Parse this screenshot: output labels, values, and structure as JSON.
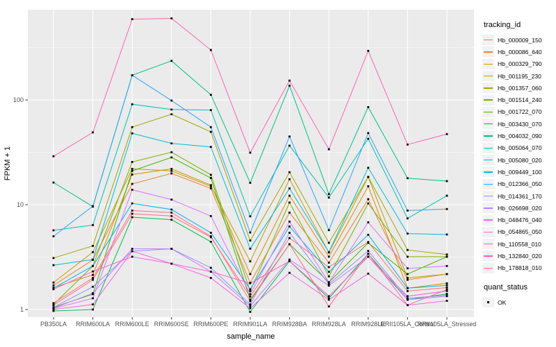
{
  "figure": {
    "background": "#ffffff",
    "panel_background": "#ebebeb",
    "gridline_color": "#ffffff",
    "axis_text_color": "#4d4d4d",
    "tick_color": "#333333"
  },
  "chart_data": {
    "type": "line",
    "title": "",
    "xlabel": "sample_name",
    "ylabel": "FPKM + 1",
    "y_scale": "log10",
    "y_ticks": [
      1,
      10,
      100
    ],
    "y_tick_labels": [
      "1",
      "10",
      "100"
    ],
    "y_minor_ticks": [
      3.1623,
      31.623,
      316.23
    ],
    "ylim": [
      0.85,
      730
    ],
    "grid": "on",
    "legend_position": "right",
    "legend_title": "tracking_id",
    "point_legend": {
      "title": "quant_status",
      "label": "OK",
      "marker": "black-square"
    },
    "categories": [
      "PB350LA",
      "RRIM600LA",
      "RRIM600LE",
      "RRIM600SE",
      "RRIM600PE",
      "RRIM901LA",
      "RRIM928BA",
      "RRIM928LA",
      "RRIM928LE",
      "RRII105LA_Control",
      "RRII105LA_Stressed"
    ],
    "series": [
      {
        "name": "Hb_000009_150",
        "color": "#F8766D",
        "values": [
          1.1,
          1.92,
          8.2,
          7.8,
          4.9,
          1.33,
          4.8,
          2.54,
          4.4,
          1.5,
          1.62
        ]
      },
      {
        "name": "Hb_000086_640",
        "color": "#EA8331",
        "values": [
          1.7,
          2.98,
          15.8,
          19.9,
          14.3,
          1.8,
          8.4,
          2.8,
          11.3,
          1.92,
          2.18
        ]
      },
      {
        "name": "Hb_000329_790",
        "color": "#D89000",
        "values": [
          1.62,
          2.14,
          19.4,
          22.0,
          15.4,
          2.18,
          12.2,
          3.19,
          15.0,
          1.6,
          1.78
        ]
      },
      {
        "name": "Hb_001195_230",
        "color": "#C09B00",
        "values": [
          1.81,
          3.53,
          22.0,
          21.0,
          15.0,
          2.88,
          17.5,
          3.5,
          18.4,
          2.0,
          2.18
        ]
      },
      {
        "name": "Hb_001357_060",
        "color": "#A3A500",
        "values": [
          3.1,
          4.05,
          55.0,
          73.0,
          49.6,
          4.55,
          20.4,
          4.33,
          18.4,
          3.7,
          3.35
        ]
      },
      {
        "name": "Hb_001514_240",
        "color": "#7CAE00",
        "values": [
          1.12,
          2.6,
          25.6,
          31.7,
          19.3,
          1.5,
          10.5,
          2.07,
          10.3,
          3.19,
          3.19
        ]
      },
      {
        "name": "Hb_001722_070",
        "color": "#39B600",
        "values": [
          1.05,
          1.4,
          21.0,
          28.3,
          18.0,
          1.24,
          4.2,
          1.82,
          4.33,
          2.18,
          3.19
        ]
      },
      {
        "name": "Hb_003430_070",
        "color": "#00BB4E",
        "values": [
          0.97,
          1.0,
          7.6,
          7.2,
          4.43,
          0.95,
          2.9,
          1.28,
          3.4,
          1.24,
          1.41
        ]
      },
      {
        "name": "Hb_004032_090",
        "color": "#00C085",
        "values": [
          16.3,
          9.6,
          172.0,
          236.0,
          112.0,
          16.2,
          137.0,
          12.6,
          85.5,
          17.9,
          16.8
        ]
      },
      {
        "name": "Hb_005064_070",
        "color": "#00C0B2",
        "values": [
          5.7,
          6.4,
          91.0,
          81.0,
          80.0,
          7.75,
          36.6,
          11.7,
          42.6,
          7.4,
          12.2
        ]
      },
      {
        "name": "Hb_005080_020",
        "color": "#00BCD6",
        "values": [
          2.65,
          3.0,
          48.0,
          38.5,
          35.6,
          3.81,
          14.3,
          3.53,
          22.5,
          5.3,
          5.2
        ]
      },
      {
        "name": "Hb_009449_100",
        "color": "#00B2F3",
        "values": [
          1.6,
          2.6,
          10.3,
          9.0,
          5.4,
          1.56,
          6.2,
          2.29,
          5.17,
          1.6,
          1.7
        ]
      },
      {
        "name": "Hb_012366_050",
        "color": "#29A3FF",
        "values": [
          5.0,
          9.7,
          172.0,
          98.7,
          55.0,
          5.43,
          44.8,
          5.72,
          48.3,
          8.8,
          9.1
        ]
      },
      {
        "name": "Hb_014361_170",
        "color": "#9590FF",
        "values": [
          1.05,
          1.65,
          3.6,
          3.8,
          2.5,
          1.12,
          5.4,
          1.75,
          3.62,
          1.28,
          1.37
        ]
      },
      {
        "name": "Hb_026698_020",
        "color": "#BE80FF",
        "values": [
          1.03,
          1.43,
          3.8,
          3.8,
          2.3,
          1.08,
          3.0,
          1.69,
          3.19,
          1.24,
          1.34
        ]
      },
      {
        "name": "Hb_048476_040",
        "color": "#DB72FB",
        "values": [
          1.02,
          1.28,
          13.9,
          11.2,
          7.8,
          1.4,
          6.9,
          1.82,
          6.8,
          2.47,
          2.6
        ]
      },
      {
        "name": "Hb_054865_050",
        "color": "#F066EA",
        "values": [
          1.0,
          1.12,
          3.6,
          2.74,
          2.0,
          1.03,
          2.24,
          1.24,
          2.2,
          1.1,
          1.21
        ]
      },
      {
        "name": "Hb_110558_010",
        "color": "#FB61D7",
        "values": [
          1.56,
          2.31,
          3.19,
          2.74,
          2.3,
          1.78,
          2.9,
          1.34,
          3.19,
          1.34,
          1.5
        ]
      },
      {
        "name": "Hb_132840_020",
        "color": "#FF61B9",
        "values": [
          29.0,
          49.0,
          590.0,
          600.0,
          300.0,
          31.4,
          153.0,
          33.8,
          294.0,
          37.5,
          47.2
        ]
      },
      {
        "name": "Hb_178818_010",
        "color": "#FF6C92",
        "values": [
          1.15,
          2.0,
          8.8,
          8.4,
          5.0,
          1.2,
          4.2,
          1.07,
          3.4,
          1.1,
          1.55
        ]
      }
    ]
  }
}
